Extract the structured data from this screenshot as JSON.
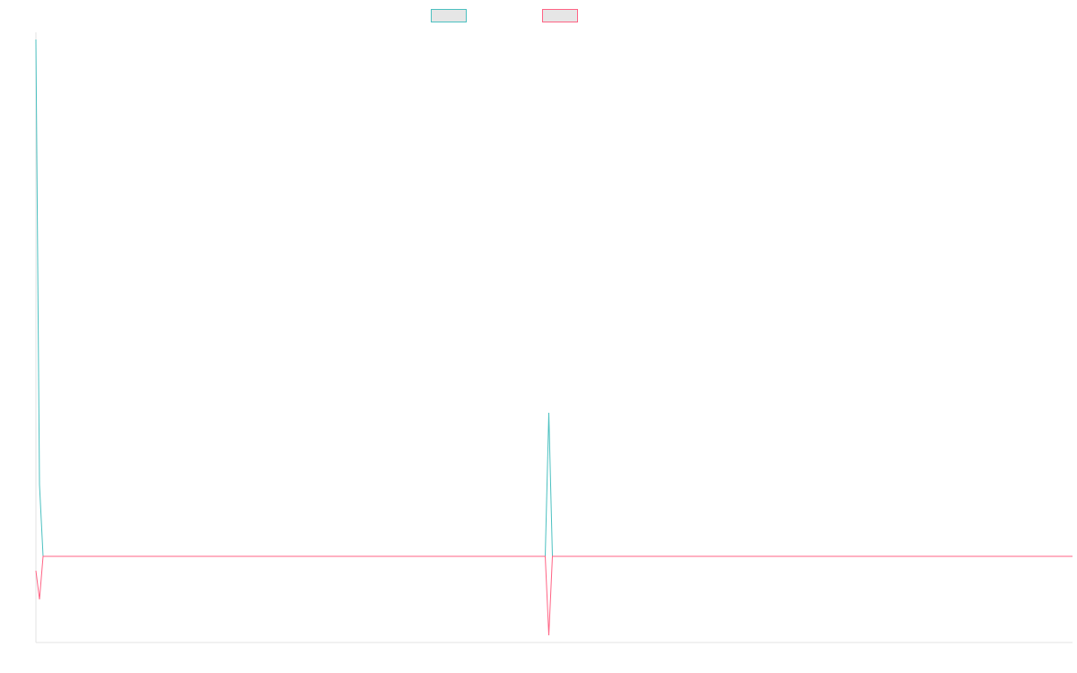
{
  "chart_data": {
    "type": "line",
    "title": "",
    "xlabel": "",
    "ylabel": "",
    "grid": false,
    "legend_placement": "top-center",
    "x_count": 290,
    "ylim": [
      -12,
      73
    ],
    "series": [
      {
        "name": "",
        "color": "#4bc0c0",
        "baseline": 0,
        "points": [
          [
            0,
            72
          ],
          [
            1,
            10
          ],
          [
            2,
            0
          ],
          [
            142,
            0
          ],
          [
            143,
            20
          ],
          [
            144,
            0
          ],
          [
            289,
            0
          ]
        ]
      },
      {
        "name": "",
        "color": "#ff6384",
        "baseline": 0,
        "points": [
          [
            0,
            -2
          ],
          [
            1,
            -6
          ],
          [
            2,
            0
          ],
          [
            142,
            0
          ],
          [
            143,
            -11
          ],
          [
            144,
            0
          ],
          [
            289,
            0
          ]
        ]
      }
    ]
  }
}
